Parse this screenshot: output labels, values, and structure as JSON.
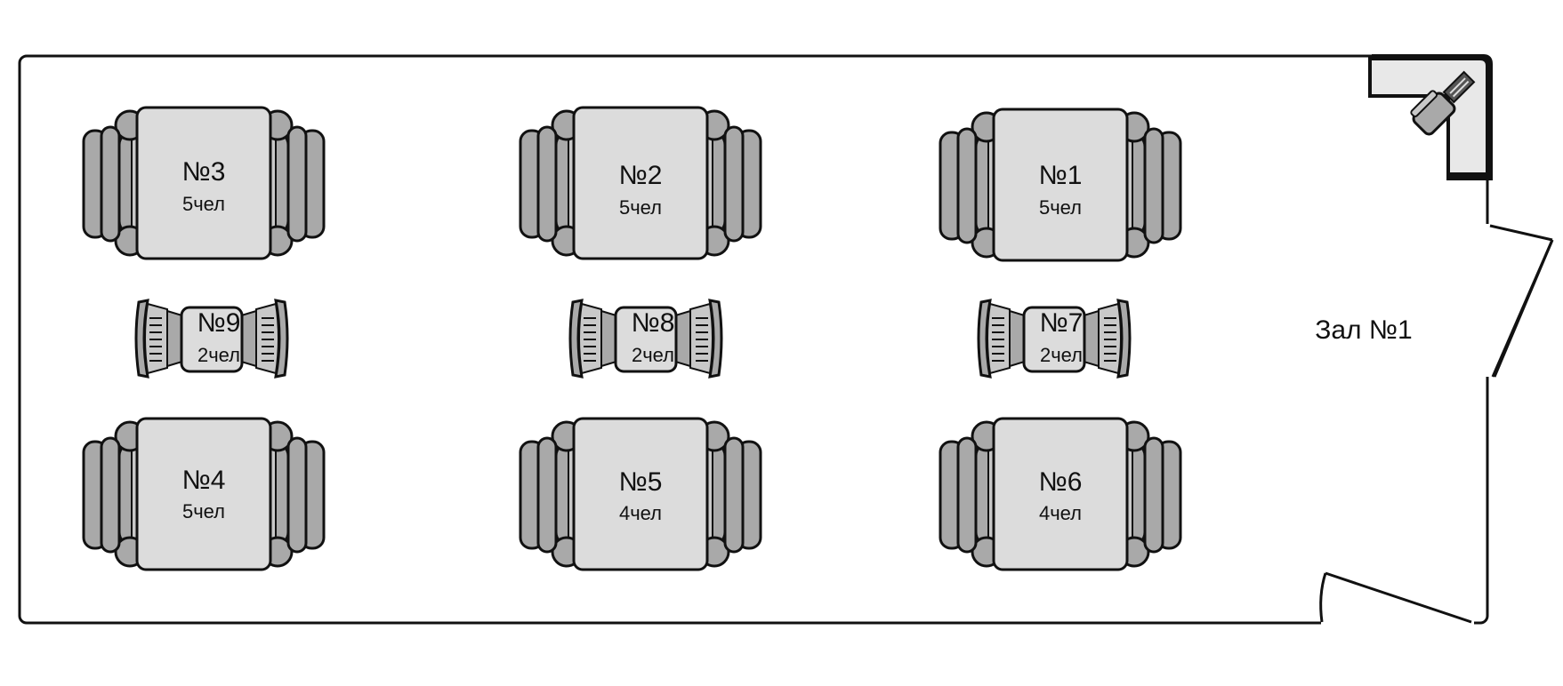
{
  "hall": {
    "label": "Зал №1"
  },
  "tables": [
    {
      "number": "№3",
      "capacity": "5чел",
      "kind": "large"
    },
    {
      "number": "№2",
      "capacity": "5чел",
      "kind": "large"
    },
    {
      "number": "№1",
      "capacity": "5чел",
      "kind": "large"
    },
    {
      "number": "№9",
      "capacity": "2чел",
      "kind": "small"
    },
    {
      "number": "№8",
      "capacity": "2чел",
      "kind": "small"
    },
    {
      "number": "№7",
      "capacity": "2чел",
      "kind": "small"
    },
    {
      "number": "№4",
      "capacity": "5чел",
      "kind": "large"
    },
    {
      "number": "№5",
      "capacity": "4чел",
      "kind": "large"
    },
    {
      "number": "№6",
      "capacity": "4чел",
      "kind": "large"
    }
  ],
  "icons": {
    "reception": "reception-desk-icon",
    "door": "door-icon",
    "sofa": "sofa-icon",
    "chair": "chair-icon"
  },
  "colors": {
    "wall": "#111111",
    "table_fill": "#dcdcdc",
    "seat_fill": "#a9a9a9",
    "seat_dark": "#333333",
    "seat_light": "#c8c8c8"
  }
}
